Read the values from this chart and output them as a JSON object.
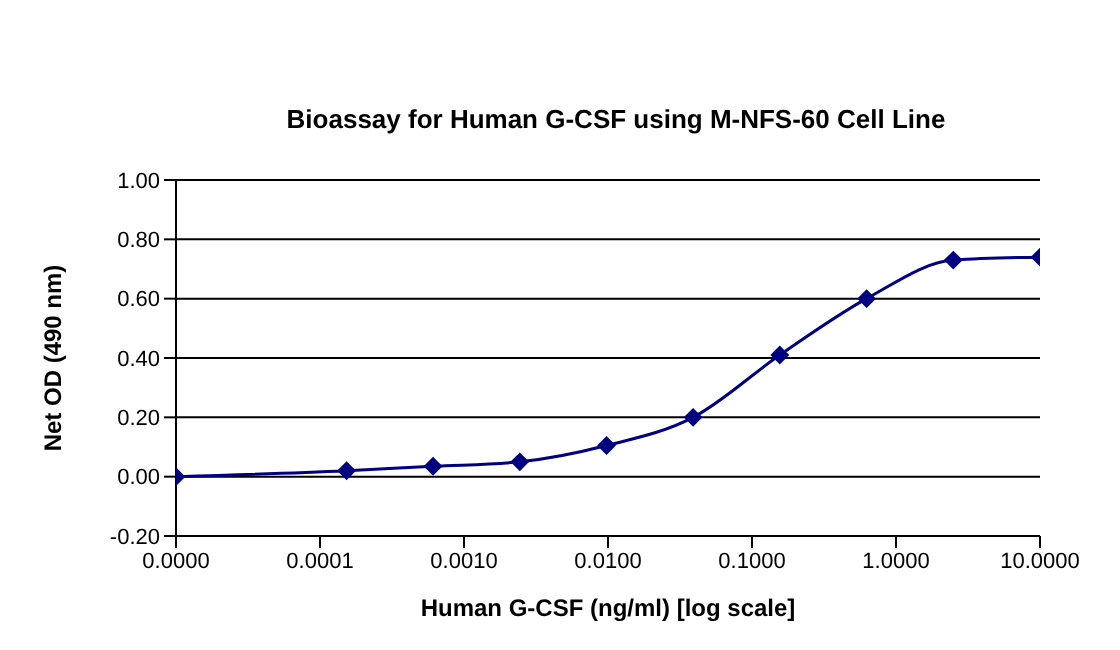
{
  "chart_data": {
    "type": "line",
    "title": "Bioassay for Human G-CSF using M-NFS-60 Cell Line",
    "xlabel": "Human G-CSF (ng/ml)  [log scale]",
    "ylabel": "Net OD (490 nm)",
    "x": [
      1e-05,
      0.000153,
      0.00061,
      0.00244,
      0.00977,
      0.039,
      0.156,
      0.625,
      2.5,
      10
    ],
    "series": [
      {
        "color": "#000080",
        "values": [
          0,
          0.02,
          0.035,
          0.05,
          0.105,
          0.2,
          0.41,
          0.6,
          0.73,
          0.74
        ]
      }
    ],
    "log": "x",
    "xlim": [
      1e-05,
      10
    ],
    "xticks": [
      {
        "value": 1e-05,
        "label": "0.0000"
      },
      {
        "value": 0.0001,
        "label": "0.0001"
      },
      {
        "value": 0.001,
        "label": "0.0010"
      },
      {
        "value": 0.01,
        "label": "0.0100"
      },
      {
        "value": 0.1,
        "label": "0.1000"
      },
      {
        "value": 1,
        "label": "1.0000"
      },
      {
        "value": 10,
        "label": "10.0000"
      }
    ],
    "ylim": [
      -0.2,
      1
    ],
    "yticks": [
      {
        "value": -0.2,
        "label": "-0.20"
      },
      {
        "value": 0,
        "label": "0.00"
      },
      {
        "value": 0.2,
        "label": "0.20"
      },
      {
        "value": 0.4,
        "label": "0.40"
      },
      {
        "value": 0.6,
        "label": "0.60"
      },
      {
        "value": 0.8,
        "label": "0.80"
      },
      {
        "value": 1,
        "label": "1.00"
      }
    ],
    "grid": "y",
    "legend": false,
    "marker": "diamond",
    "line_style": "solid"
  }
}
